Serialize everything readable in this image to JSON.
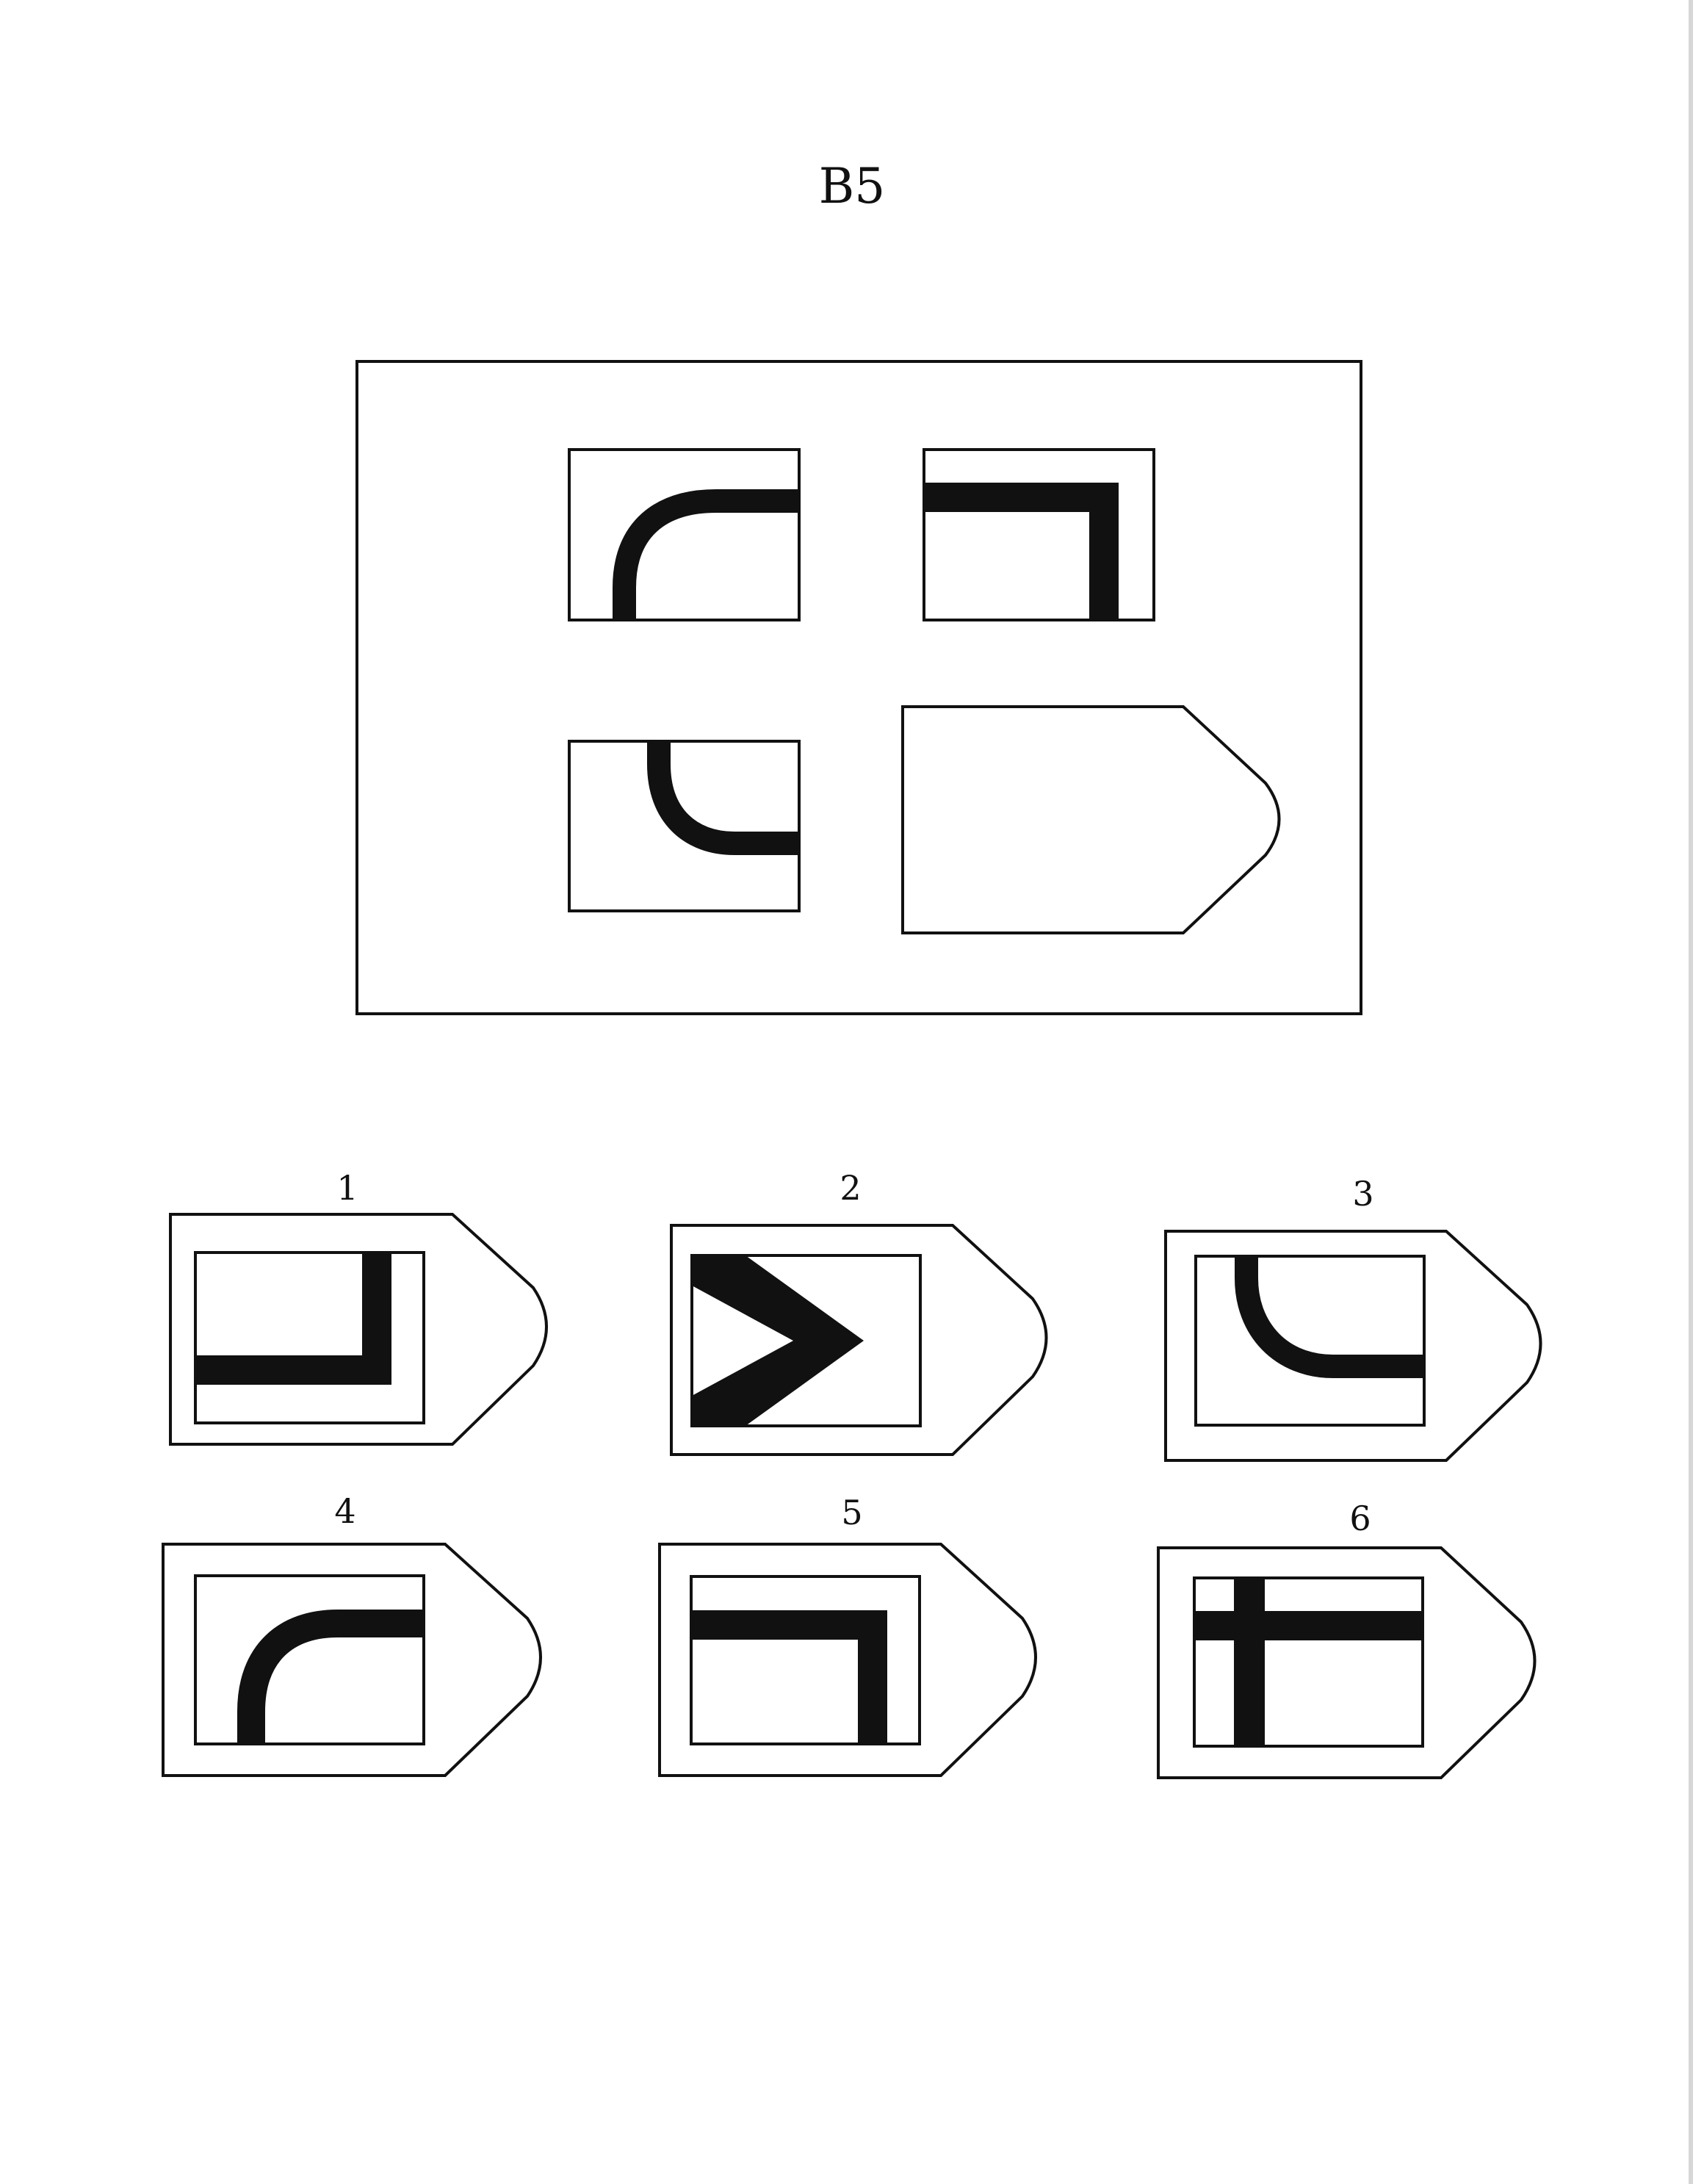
{
  "page": {
    "title": "B5"
  },
  "puzzle": {
    "matrix_cells": [
      {
        "content": "curve-top-left-icon"
      },
      {
        "content": "corner-top-right-icon"
      },
      {
        "content": "curve-bottom-left-icon"
      },
      {
        "content": "empty-missing-cell"
      }
    ]
  },
  "options": [
    {
      "number": "1",
      "icon": "corner-bottom-right-icon"
    },
    {
      "number": "2",
      "icon": "chevron-right-icon"
    },
    {
      "number": "3",
      "icon": "curve-bottom-left-icon"
    },
    {
      "number": "4",
      "icon": "curve-top-left-icon"
    },
    {
      "number": "5",
      "icon": "corner-top-right-icon"
    },
    {
      "number": "6",
      "icon": "cross-icon"
    }
  ],
  "colors": {
    "ink": "#111111",
    "paper": "#ffffff"
  }
}
